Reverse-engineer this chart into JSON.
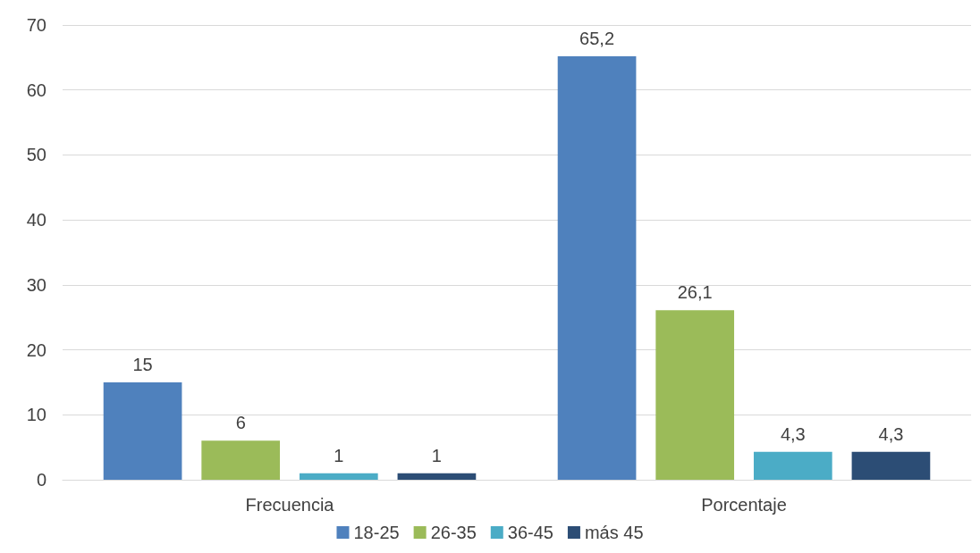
{
  "chart_data": {
    "type": "bar",
    "categories": [
      "Frecuencia",
      "Porcentaje"
    ],
    "series": [
      {
        "name": "18-25",
        "color": "#4f81bd",
        "values": [
          15,
          65.2
        ],
        "value_labels": [
          "15",
          "65,2"
        ]
      },
      {
        "name": "26-35",
        "color": "#9bbb59",
        "values": [
          6,
          26.1
        ],
        "value_labels": [
          "6",
          "26,1"
        ]
      },
      {
        "name": "36-45",
        "color": "#4bacc6",
        "values": [
          1,
          4.3
        ],
        "value_labels": [
          "1",
          "4,3"
        ]
      },
      {
        "name": "más 45",
        "color": "#2c4d75",
        "values": [
          1,
          4.3
        ],
        "value_labels": [
          "1",
          "4,3"
        ]
      }
    ],
    "ylim": [
      0,
      70
    ],
    "yticks": [
      0,
      10,
      20,
      30,
      40,
      50,
      60,
      70
    ],
    "grid": "y",
    "legend": "bottom"
  }
}
